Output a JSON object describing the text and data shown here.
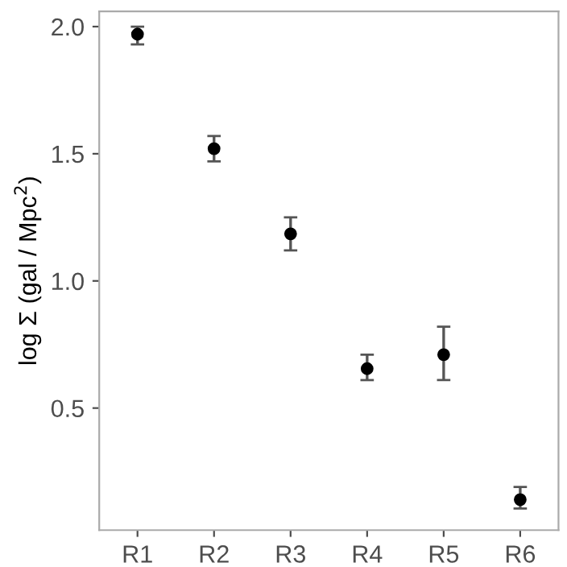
{
  "chart_data": {
    "type": "scatter",
    "ylabel": "log Σ (gal / Mpc$^{2}$)",
    "categories": [
      "R1",
      "R2",
      "R3",
      "R4",
      "R5",
      "R6"
    ],
    "series": [
      {
        "color": "#000000",
        "values": [
          1.97,
          1.52,
          1.185,
          0.655,
          0.71,
          0.14
        ],
        "errors": [
          [
            1.93,
            2.0
          ],
          [
            1.47,
            1.57
          ],
          [
            1.12,
            1.25
          ],
          [
            0.61,
            0.71
          ],
          [
            0.61,
            0.82
          ],
          [
            0.105,
            0.19
          ]
        ]
      }
    ],
    "ylim": [
      0.02,
      2.06
    ],
    "yticks": [
      0.5,
      {
        "value": 1,
        "label": "1.0"
      },
      1.5,
      {
        "value": 2,
        "label": "2.0"
      }
    ],
    "grid": false,
    "marker": "circle"
  }
}
